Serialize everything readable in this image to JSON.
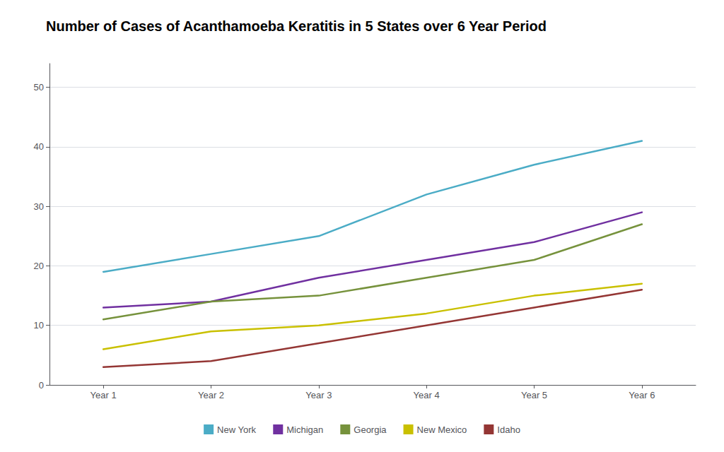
{
  "chart_data": {
    "type": "line",
    "title": "Number of Cases of Acanthamoeba Keratitis in 5 States over 6 Year Period",
    "categories": [
      "Year 1",
      "Year 2",
      "Year 3",
      "Year 4",
      "Year 5",
      "Year 6"
    ],
    "series": [
      {
        "name": "New York",
        "color": "#4BACC6",
        "values": [
          19,
          22,
          25,
          32,
          37,
          41
        ]
      },
      {
        "name": "Michigan",
        "color": "#7030A0",
        "values": [
          13,
          14,
          18,
          21,
          24,
          29
        ]
      },
      {
        "name": "Georgia",
        "color": "#76923C",
        "values": [
          11,
          14,
          15,
          18,
          21,
          27
        ]
      },
      {
        "name": "New Mexico",
        "color": "#C9C000",
        "values": [
          6,
          9,
          10,
          12,
          15,
          17
        ]
      },
      {
        "name": "Idaho",
        "color": "#943634",
        "values": [
          3,
          4,
          7,
          10,
          13,
          16
        ]
      }
    ],
    "ylim": [
      0,
      54
    ],
    "yticks": [
      0,
      10,
      20,
      30,
      40,
      50
    ],
    "grid": true,
    "legend": "bottom"
  }
}
